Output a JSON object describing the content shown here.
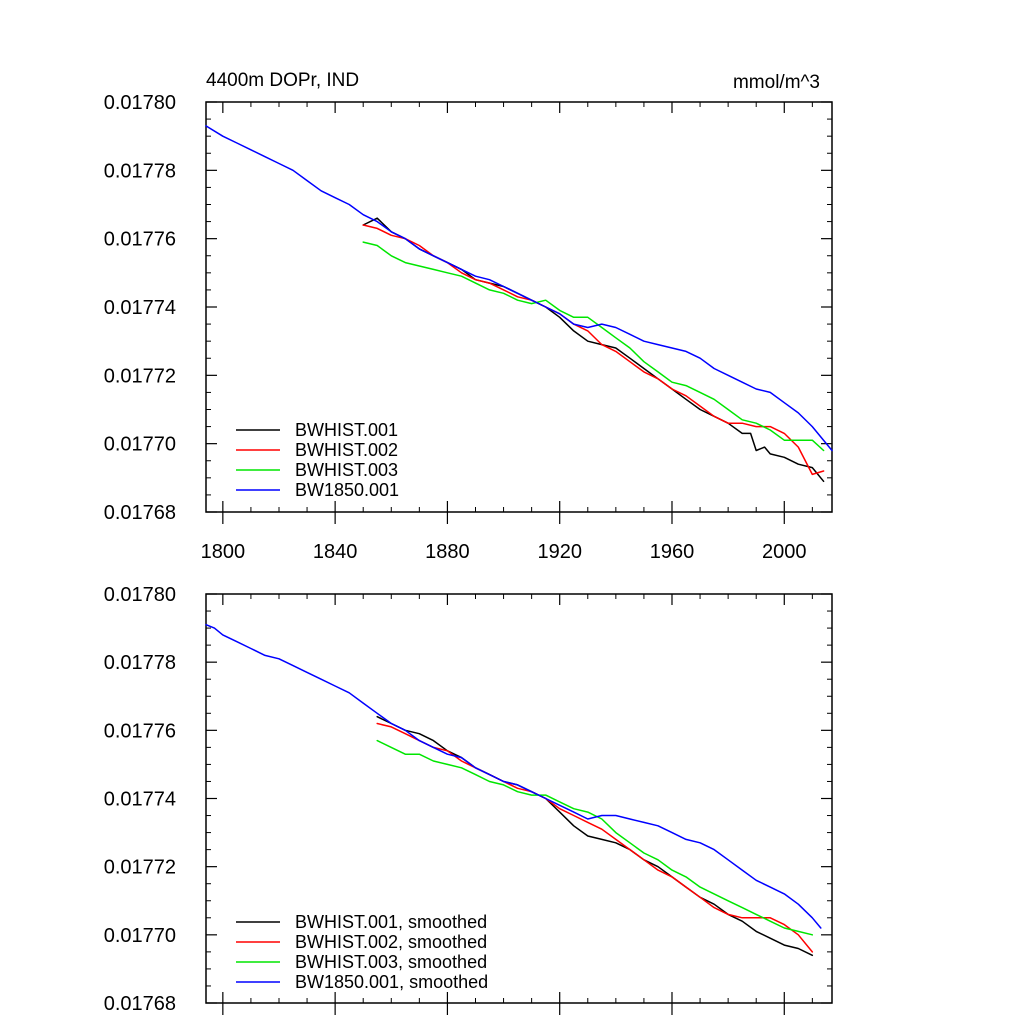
{
  "chart_data": [
    {
      "type": "line",
      "title": "4400m DOPr, IND",
      "units": "mmol/m^3",
      "xlim": [
        1794,
        2017
      ],
      "ylim": [
        0.01768,
        0.0178
      ],
      "xticks": [
        1800,
        1840,
        1880,
        1920,
        1960,
        2000
      ],
      "yticks": [
        0.01768,
        0.0177,
        0.01772,
        0.01774,
        0.01776,
        0.01778,
        0.0178
      ],
      "ytick_labels": [
        "0.01768",
        "0.01770",
        "0.01772",
        "0.01774",
        "0.01776",
        "0.01778",
        "0.01780"
      ],
      "xtick_labels": [
        "1800",
        "1840",
        "1880",
        "1920",
        "1960",
        "2000"
      ],
      "legend_position": "bottom-left",
      "series": [
        {
          "name": "BWHIST.001",
          "color": "#000000",
          "x": [
            1850,
            1855,
            1860,
            1865,
            1870,
            1875,
            1880,
            1885,
            1890,
            1895,
            1900,
            1905,
            1910,
            1915,
            1920,
            1925,
            1930,
            1935,
            1940,
            1945,
            1950,
            1955,
            1960,
            1965,
            1970,
            1975,
            1980,
            1985,
            1988,
            1990,
            1993,
            1995,
            2000,
            2005,
            2010,
            2014
          ],
          "y": [
            0.017764,
            0.017766,
            0.017762,
            0.01776,
            0.017757,
            0.017755,
            0.017753,
            0.017751,
            0.017748,
            0.017747,
            0.017746,
            0.017744,
            0.017742,
            0.01774,
            0.017737,
            0.017733,
            0.01773,
            0.017729,
            0.017728,
            0.017725,
            0.017722,
            0.017719,
            0.017716,
            0.017713,
            0.01771,
            0.017708,
            0.017706,
            0.017703,
            0.017703,
            0.017698,
            0.017699,
            0.017697,
            0.017696,
            0.017694,
            0.017693,
            0.017689
          ]
        },
        {
          "name": "BWHIST.002",
          "color": "#ff0000",
          "x": [
            1850,
            1855,
            1860,
            1865,
            1870,
            1875,
            1880,
            1885,
            1890,
            1895,
            1900,
            1905,
            1910,
            1915,
            1920,
            1925,
            1930,
            1935,
            1940,
            1945,
            1950,
            1955,
            1960,
            1965,
            1970,
            1975,
            1980,
            1985,
            1990,
            1995,
            2000,
            2005,
            2010,
            2014
          ],
          "y": [
            0.017764,
            0.017763,
            0.017761,
            0.01776,
            0.017758,
            0.017755,
            0.017753,
            0.01775,
            0.017748,
            0.017747,
            0.017745,
            0.017743,
            0.017742,
            0.01774,
            0.017738,
            0.017735,
            0.017733,
            0.017729,
            0.017727,
            0.017724,
            0.017721,
            0.017719,
            0.017716,
            0.017714,
            0.017711,
            0.017708,
            0.017706,
            0.017706,
            0.017705,
            0.017705,
            0.017703,
            0.017699,
            0.017691,
            0.017692
          ]
        },
        {
          "name": "BWHIST.003",
          "color": "#00e600",
          "x": [
            1850,
            1855,
            1860,
            1865,
            1870,
            1875,
            1880,
            1885,
            1890,
            1895,
            1900,
            1905,
            1910,
            1915,
            1920,
            1925,
            1930,
            1935,
            1940,
            1945,
            1950,
            1955,
            1960,
            1965,
            1970,
            1975,
            1980,
            1985,
            1990,
            1995,
            2000,
            2005,
            2010,
            2014
          ],
          "y": [
            0.017759,
            0.017758,
            0.017755,
            0.017753,
            0.017752,
            0.017751,
            0.01775,
            0.017749,
            0.017747,
            0.017745,
            0.017744,
            0.017742,
            0.017741,
            0.017742,
            0.017739,
            0.017737,
            0.017737,
            0.017734,
            0.017731,
            0.017728,
            0.017724,
            0.017721,
            0.017718,
            0.017717,
            0.017715,
            0.017713,
            0.01771,
            0.017707,
            0.017706,
            0.017704,
            0.017701,
            0.017701,
            0.017701,
            0.017698
          ]
        },
        {
          "name": "BW1850.001",
          "color": "#0000ff",
          "x": [
            1794,
            1800,
            1805,
            1810,
            1815,
            1820,
            1825,
            1830,
            1835,
            1840,
            1845,
            1850,
            1855,
            1860,
            1865,
            1870,
            1875,
            1880,
            1885,
            1890,
            1895,
            1900,
            1905,
            1910,
            1915,
            1920,
            1925,
            1930,
            1935,
            1940,
            1945,
            1950,
            1955,
            1960,
            1965,
            1970,
            1975,
            1980,
            1985,
            1990,
            1995,
            2000,
            2005,
            2010,
            2017
          ],
          "y": [
            0.017793,
            0.01779,
            0.017788,
            0.017786,
            0.017784,
            0.017782,
            0.01778,
            0.017777,
            0.017774,
            0.017772,
            0.01777,
            0.017767,
            0.017765,
            0.017762,
            0.01776,
            0.017757,
            0.017755,
            0.017753,
            0.017751,
            0.017749,
            0.017748,
            0.017746,
            0.017744,
            0.017742,
            0.01774,
            0.017738,
            0.017735,
            0.017734,
            0.017735,
            0.017734,
            0.017732,
            0.01773,
            0.017729,
            0.017728,
            0.017727,
            0.017725,
            0.017722,
            0.01772,
            0.017718,
            0.017716,
            0.017715,
            0.017712,
            0.017709,
            0.017705,
            0.017698
          ]
        }
      ]
    },
    {
      "type": "line",
      "title": "",
      "units": "",
      "xlim": [
        1794,
        2017
      ],
      "ylim": [
        0.01768,
        0.0178
      ],
      "xticks": [
        1800,
        1840,
        1880,
        1920,
        1960,
        2000
      ],
      "yticks": [
        0.01768,
        0.0177,
        0.01772,
        0.01774,
        0.01776,
        0.01778,
        0.0178
      ],
      "ytick_labels": [
        "0.01768",
        "0.01770",
        "0.01772",
        "0.01774",
        "0.01776",
        "0.01778",
        "0.01780"
      ],
      "xtick_labels": [],
      "legend_position": "bottom-left",
      "series": [
        {
          "name": "BWHIST.001, smoothed",
          "color": "#000000",
          "x": [
            1855,
            1860,
            1865,
            1870,
            1875,
            1880,
            1885,
            1890,
            1895,
            1900,
            1905,
            1910,
            1915,
            1920,
            1925,
            1930,
            1935,
            1940,
            1945,
            1950,
            1955,
            1960,
            1965,
            1970,
            1975,
            1980,
            1985,
            1990,
            1995,
            2000,
            2005,
            2010
          ],
          "y": [
            0.017764,
            0.017762,
            0.01776,
            0.017759,
            0.017757,
            0.017754,
            0.017752,
            0.017749,
            0.017747,
            0.017745,
            0.017744,
            0.017742,
            0.01774,
            0.017736,
            0.017732,
            0.017729,
            0.017728,
            0.017727,
            0.017725,
            0.017722,
            0.01772,
            0.017717,
            0.017714,
            0.017711,
            0.017709,
            0.017706,
            0.017704,
            0.017701,
            0.017699,
            0.017697,
            0.017696,
            0.017694
          ]
        },
        {
          "name": "BWHIST.002, smoothed",
          "color": "#ff0000",
          "x": [
            1855,
            1860,
            1865,
            1870,
            1875,
            1880,
            1885,
            1890,
            1895,
            1900,
            1905,
            1910,
            1915,
            1920,
            1925,
            1930,
            1935,
            1940,
            1945,
            1950,
            1955,
            1960,
            1965,
            1970,
            1975,
            1980,
            1985,
            1990,
            1995,
            2000,
            2005,
            2010
          ],
          "y": [
            0.017762,
            0.017761,
            0.017759,
            0.017757,
            0.017755,
            0.017754,
            0.017751,
            0.017749,
            0.017747,
            0.017745,
            0.017743,
            0.017742,
            0.01774,
            0.017737,
            0.017735,
            0.017733,
            0.017731,
            0.017728,
            0.017725,
            0.017722,
            0.017719,
            0.017717,
            0.017714,
            0.017711,
            0.017708,
            0.017706,
            0.017705,
            0.017705,
            0.017705,
            0.017703,
            0.0177,
            0.017695
          ]
        },
        {
          "name": "BWHIST.003, smoothed",
          "color": "#00e600",
          "x": [
            1855,
            1860,
            1865,
            1870,
            1875,
            1880,
            1885,
            1890,
            1895,
            1900,
            1905,
            1910,
            1915,
            1920,
            1925,
            1930,
            1935,
            1940,
            1945,
            1950,
            1955,
            1960,
            1965,
            1970,
            1975,
            1980,
            1985,
            1990,
            1995,
            2000,
            2005,
            2010
          ],
          "y": [
            0.017757,
            0.017755,
            0.017753,
            0.017753,
            0.017751,
            0.01775,
            0.017749,
            0.017747,
            0.017745,
            0.017744,
            0.017742,
            0.017741,
            0.017741,
            0.017739,
            0.017737,
            0.017736,
            0.017734,
            0.01773,
            0.017727,
            0.017724,
            0.017722,
            0.017719,
            0.017717,
            0.017714,
            0.017712,
            0.01771,
            0.017708,
            0.017706,
            0.017704,
            0.017702,
            0.017701,
            0.0177
          ]
        },
        {
          "name": "BW1850.001, smoothed",
          "color": "#0000ff",
          "x": [
            1794,
            1797,
            1800,
            1805,
            1810,
            1815,
            1820,
            1825,
            1830,
            1835,
            1840,
            1845,
            1850,
            1855,
            1860,
            1865,
            1870,
            1875,
            1880,
            1885,
            1890,
            1895,
            1900,
            1905,
            1910,
            1915,
            1920,
            1925,
            1930,
            1935,
            1940,
            1945,
            1950,
            1955,
            1960,
            1965,
            1970,
            1975,
            1980,
            1985,
            1990,
            1995,
            2000,
            2005,
            2010,
            2013
          ],
          "y": [
            0.017791,
            0.01779,
            0.017788,
            0.017786,
            0.017784,
            0.017782,
            0.017781,
            0.017779,
            0.017777,
            0.017775,
            0.017773,
            0.017771,
            0.017768,
            0.017765,
            0.017762,
            0.01776,
            0.017757,
            0.017755,
            0.017753,
            0.017752,
            0.017749,
            0.017747,
            0.017745,
            0.017744,
            0.017742,
            0.01774,
            0.017738,
            0.017736,
            0.017734,
            0.017735,
            0.017735,
            0.017734,
            0.017733,
            0.017732,
            0.01773,
            0.017728,
            0.017727,
            0.017725,
            0.017722,
            0.017719,
            0.017716,
            0.017714,
            0.017712,
            0.017709,
            0.017705,
            0.017702
          ]
        }
      ]
    }
  ]
}
